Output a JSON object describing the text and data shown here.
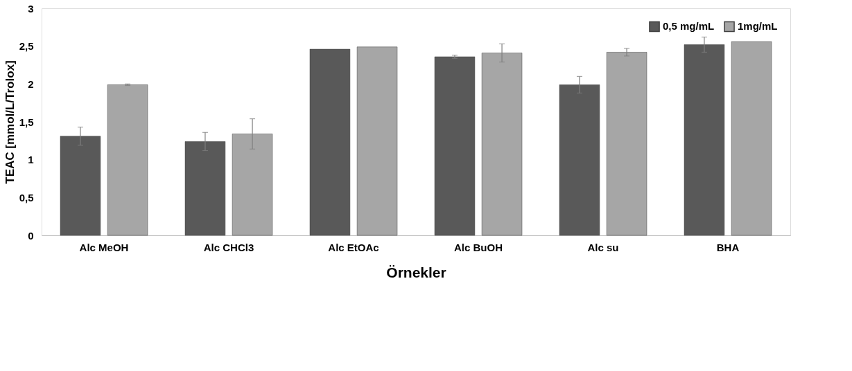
{
  "chart_data": {
    "type": "bar",
    "xlabel": "Örnekler",
    "ylabel": "TEAC [mmol/L/Trolox]",
    "categories": [
      "Alc MeOH",
      "Alc CHCl3",
      "Alc EtOAc",
      "Alc BuOH",
      "Alc su",
      "BHA"
    ],
    "series": [
      {
        "name": "0,5 mg/mL",
        "color": "#595959",
        "values": [
          1.31,
          1.24,
          2.46,
          2.36,
          1.99,
          2.52
        ],
        "errors": [
          0.12,
          0.12,
          null,
          0.02,
          0.11,
          0.1
        ]
      },
      {
        "name": "1mg/mL",
        "color": "#a6a6a6",
        "values": [
          1.99,
          1.34,
          2.49,
          2.41,
          2.42,
          2.56
        ],
        "errors": [
          0.01,
          0.2,
          null,
          0.12,
          0.05,
          null
        ]
      }
    ],
    "ylim": [
      0,
      3
    ],
    "yticks": [
      0,
      {
        "value": 0.5,
        "label": "0,5"
      },
      1,
      {
        "value": 1.5,
        "label": "1,5"
      },
      2,
      {
        "value": 2.5,
        "label": "2,5"
      },
      3
    ],
    "grid": false,
    "legend": "top right"
  }
}
